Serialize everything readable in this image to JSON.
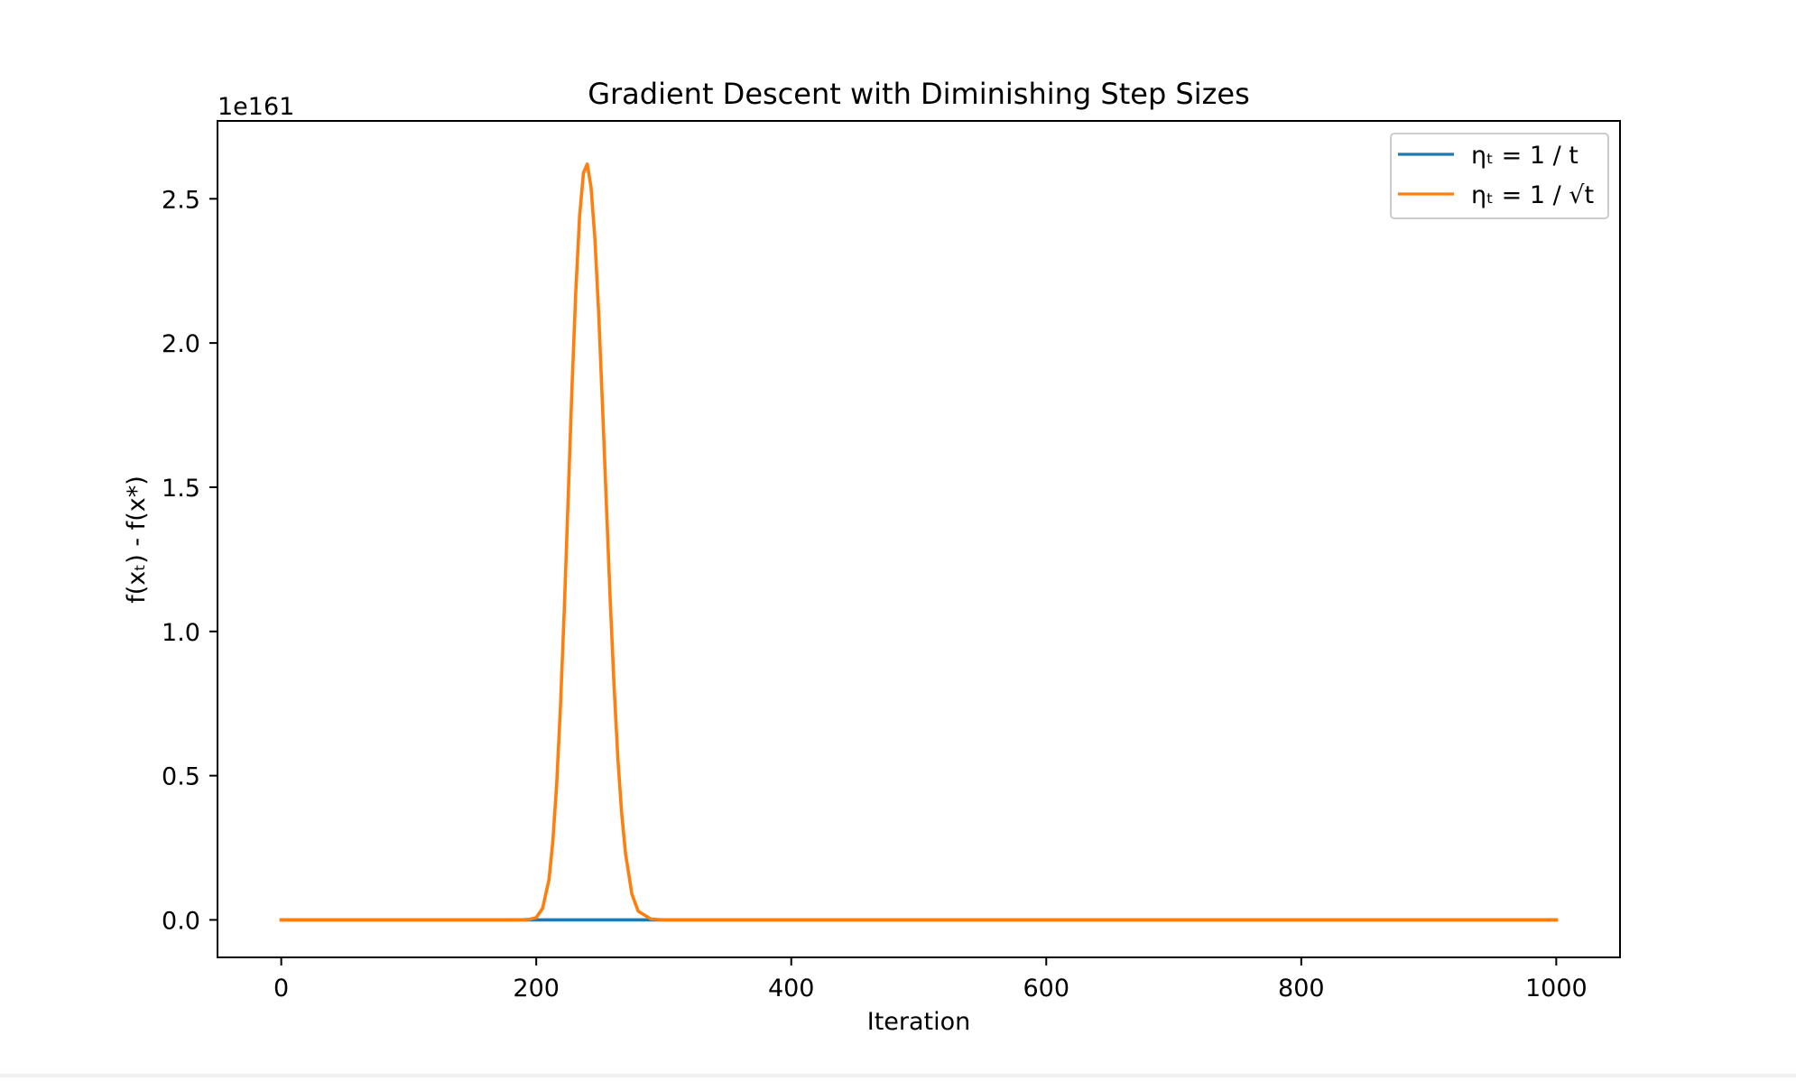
{
  "chart_data": {
    "type": "line",
    "title": "Gradient Descent with Diminishing Step Sizes",
    "xlabel": "Iteration",
    "ylabel": "f(xₜ) - f(x*)",
    "y_offset_label": "1e161",
    "y_scale_factor": 1e+161,
    "xlim": [
      -50,
      1050
    ],
    "ylim": [
      -0.13,
      2.77
    ],
    "xticks": [
      0,
      200,
      400,
      600,
      800,
      1000
    ],
    "xtick_labels": [
      "0",
      "200",
      "400",
      "600",
      "800",
      "1000"
    ],
    "yticks": [
      0.0,
      0.5,
      1.0,
      1.5,
      2.0,
      2.5
    ],
    "ytick_labels": [
      "0.0",
      "0.5",
      "1.0",
      "1.5",
      "2.0",
      "2.5"
    ],
    "grid": false,
    "legend_position": "upper right",
    "series": [
      {
        "name": "ηₜ = 1 / t",
        "color": "#1f77b4",
        "x": [
          0,
          200,
          250,
          280,
          300,
          400,
          600,
          800,
          1000
        ],
        "y": [
          0,
          0,
          0,
          0,
          0,
          0,
          0,
          0,
          0
        ]
      },
      {
        "name": "ηₜ = 1 / √t",
        "color": "#ff7f0e",
        "x": [
          0,
          100,
          180,
          190,
          195,
          200,
          205,
          210,
          213,
          216,
          219,
          222,
          225,
          228,
          231,
          234,
          237,
          240,
          243,
          246,
          249,
          252,
          255,
          258,
          261,
          264,
          267,
          270,
          275,
          280,
          290,
          300,
          400,
          600,
          800,
          1000
        ],
        "y": [
          0,
          0,
          0,
          0.0005,
          0.002,
          0.008,
          0.04,
          0.14,
          0.27,
          0.47,
          0.74,
          1.08,
          1.46,
          1.84,
          2.18,
          2.44,
          2.59,
          2.62,
          2.54,
          2.36,
          2.1,
          1.78,
          1.44,
          1.11,
          0.81,
          0.56,
          0.37,
          0.23,
          0.09,
          0.03,
          0.003,
          0,
          0,
          0,
          0,
          0
        ]
      }
    ]
  }
}
